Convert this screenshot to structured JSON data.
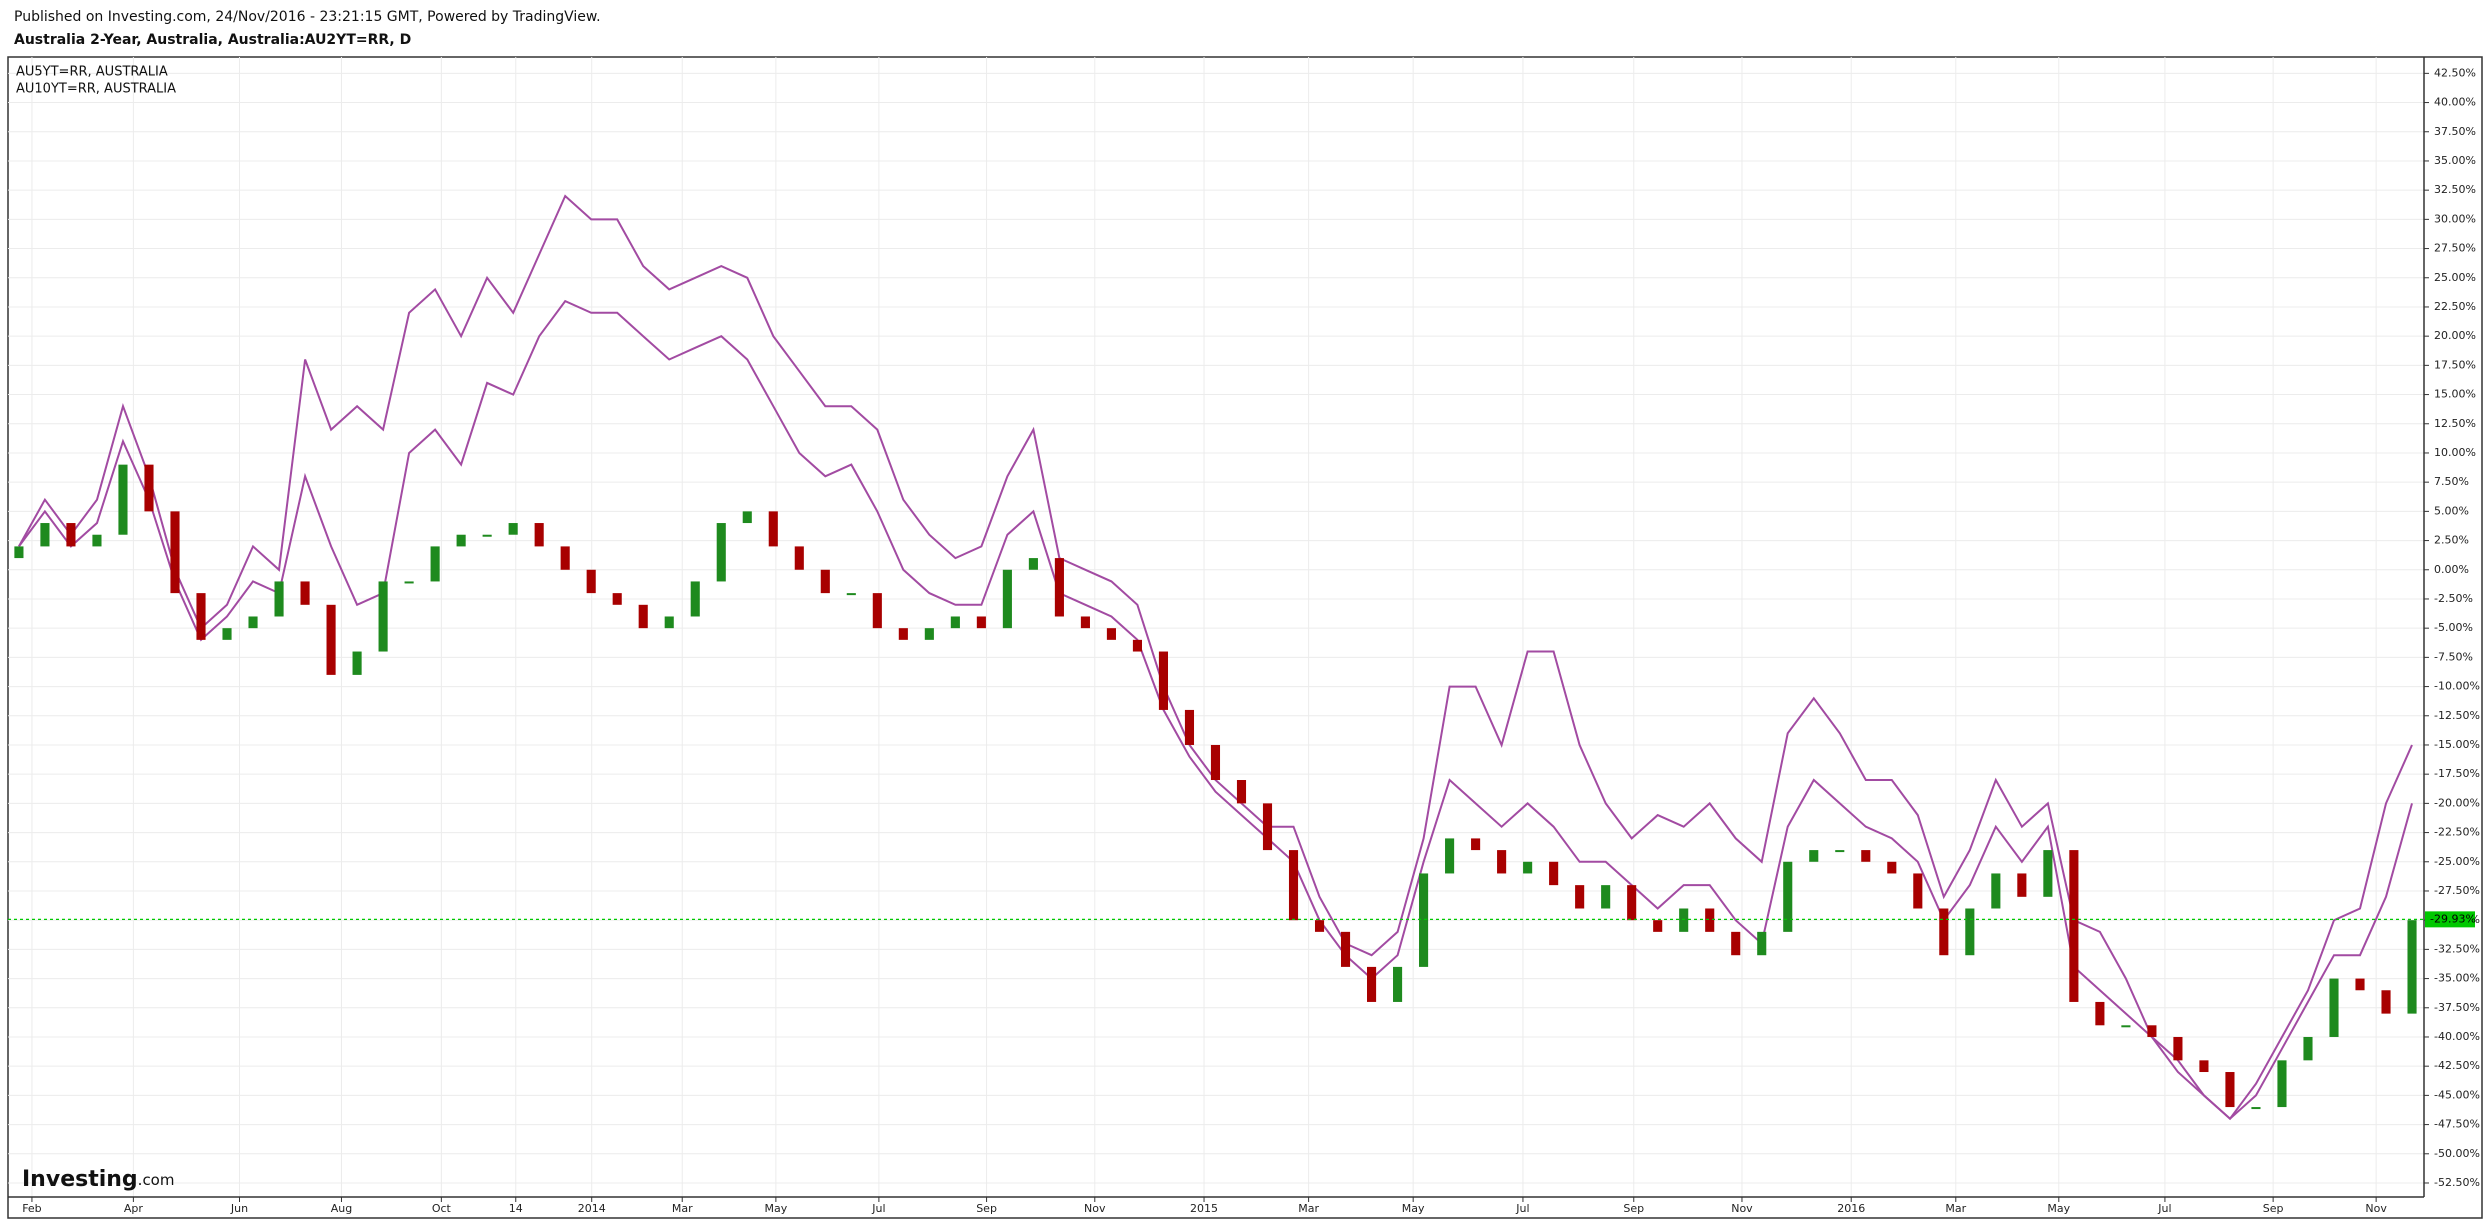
{
  "header": {
    "published": "Published on Investing.com, 24/Nov/2016 - 23:21:15 GMT, Powered by TradingView."
  },
  "branding": {
    "name": "Investing",
    "suffix": ".com"
  },
  "chart_data": {
    "type": "candlestick",
    "title": "Australia 2-Year, Australia, Australia:AU2YT=RR, D",
    "x": [
      0.75,
      1.25,
      1.75,
      2.25,
      2.75,
      3.25,
      3.75,
      4.25,
      4.75,
      5.25,
      5.75,
      6.25,
      6.75,
      7.25,
      7.75,
      8.25,
      8.75,
      9.25,
      9.75,
      10.25,
      10.75,
      11.25,
      11.75,
      12.25,
      12.75,
      13.25,
      13.75,
      14.25,
      14.75,
      15.25,
      15.75,
      16.25,
      16.75,
      17.25,
      17.75,
      18.25,
      18.75,
      19.25,
      19.75,
      20.25,
      20.75,
      21.25,
      21.75,
      22.25,
      22.75,
      23.25,
      23.75,
      24.25,
      24.75,
      25.25,
      25.75,
      26.25,
      26.75,
      27.25,
      27.75,
      28.25,
      28.75,
      29.25,
      29.75,
      30.25,
      30.75,
      31.25,
      31.75,
      32.25,
      32.75,
      33.25,
      33.75,
      34.25,
      34.75,
      35.25,
      35.75,
      36.25,
      36.75,
      37.25,
      37.75,
      38.25,
      38.75,
      39.25,
      39.75,
      40.25,
      40.75,
      41.25,
      41.75,
      42.25,
      42.75,
      43.25,
      43.75,
      44.25,
      44.75,
      45.25,
      45.75,
      46.25,
      46.75
    ],
    "xlim": [
      0.54,
      46.98
    ],
    "xticks": [
      {
        "value": 1,
        "label": "Feb"
      },
      {
        "value": 2.95,
        "label": "Apr"
      },
      {
        "value": 4.99,
        "label": "Jun"
      },
      {
        "value": 6.95,
        "label": "Aug"
      },
      {
        "value": 8.87,
        "label": "Oct"
      },
      {
        "value": 10.3,
        "label": "14"
      },
      {
        "value": 11.76,
        "label": "2014"
      },
      {
        "value": 13.5,
        "label": "Mar"
      },
      {
        "value": 15.3,
        "label": "May"
      },
      {
        "value": 17.28,
        "label": "Jul"
      },
      {
        "value": 19.35,
        "label": "Sep"
      },
      {
        "value": 21.43,
        "label": "Nov"
      },
      {
        "value": 23.53,
        "label": "2015"
      },
      {
        "value": 25.54,
        "label": "Mar"
      },
      {
        "value": 27.55,
        "label": "May"
      },
      {
        "value": 29.66,
        "label": "Jul"
      },
      {
        "value": 31.79,
        "label": "Sep"
      },
      {
        "value": 33.87,
        "label": "Nov"
      },
      {
        "value": 35.97,
        "label": "2016"
      },
      {
        "value": 37.98,
        "label": "Mar"
      },
      {
        "value": 39.96,
        "label": "May"
      },
      {
        "value": 42.0,
        "label": "Jul"
      },
      {
        "value": 44.08,
        "label": "Sep"
      },
      {
        "value": 46.06,
        "label": "Nov"
      }
    ],
    "ylim": [
      -53.7,
      43.9
    ],
    "yticks": [
      {
        "value": 42.5,
        "label": "42.50%"
      },
      {
        "value": 40,
        "label": "40.00%"
      },
      {
        "value": 37.5,
        "label": "37.50%"
      },
      {
        "value": 35,
        "label": "35.00%"
      },
      {
        "value": 32.5,
        "label": "32.50%"
      },
      {
        "value": 30,
        "label": "30.00%"
      },
      {
        "value": 27.5,
        "label": "27.50%"
      },
      {
        "value": 25,
        "label": "25.00%"
      },
      {
        "value": 22.5,
        "label": "22.50%"
      },
      {
        "value": 20,
        "label": "20.00%"
      },
      {
        "value": 17.5,
        "label": "17.50%"
      },
      {
        "value": 15,
        "label": "15.00%"
      },
      {
        "value": 12.5,
        "label": "12.50%"
      },
      {
        "value": 10,
        "label": "10.00%"
      },
      {
        "value": 7.5,
        "label": "7.50%"
      },
      {
        "value": 5,
        "label": "5.00%"
      },
      {
        "value": 2.5,
        "label": "2.50%"
      },
      {
        "value": 0,
        "label": "0.00%"
      },
      {
        "value": -2.5,
        "label": "-2.50%"
      },
      {
        "value": -5,
        "label": "-5.00%"
      },
      {
        "value": -7.5,
        "label": "-7.50%"
      },
      {
        "value": -10,
        "label": "-10.00%"
      },
      {
        "value": -12.5,
        "label": "-12.50%"
      },
      {
        "value": -15,
        "label": "-15.00%"
      },
      {
        "value": -17.5,
        "label": "-17.50%"
      },
      {
        "value": -20,
        "label": "-20.00%"
      },
      {
        "value": -22.5,
        "label": "-22.50%"
      },
      {
        "value": -25,
        "label": "-25.00%"
      },
      {
        "value": -27.5,
        "label": "-27.50%"
      },
      {
        "value": -30,
        "label": "-30.00%"
      },
      {
        "value": -32.5,
        "label": "-32.50%"
      },
      {
        "value": -35,
        "label": "-35.00%"
      },
      {
        "value": -37.5,
        "label": "-37.50%"
      },
      {
        "value": -40,
        "label": "-40.00%"
      },
      {
        "value": -42.5,
        "label": "-42.50%"
      },
      {
        "value": -45,
        "label": "-45.00%"
      },
      {
        "value": -47.5,
        "label": "-47.50%"
      },
      {
        "value": -50,
        "label": "-50.00%"
      },
      {
        "value": -52.5,
        "label": "-52.50%"
      }
    ],
    "grid": true,
    "candles": {
      "up_color": "#1e8a1e",
      "down_color": "#a80000",
      "open": [
        1,
        2,
        4,
        2,
        3,
        9,
        5,
        -2,
        -6,
        -5,
        -4,
        -1,
        -3,
        -9,
        -7,
        -1,
        -1,
        2,
        3,
        3,
        4,
        2,
        0,
        -2,
        -3,
        -5,
        -4,
        -1,
        4,
        5,
        2,
        0,
        -2,
        -2,
        -5,
        -6,
        -5,
        -4,
        -5,
        0,
        1,
        -4,
        -5,
        -6,
        -7,
        -12,
        -15,
        -18,
        -20,
        -24,
        -30,
        -31,
        -34,
        -37,
        -34,
        -26,
        -23,
        -24,
        -26,
        -25,
        -27,
        -29,
        -27,
        -30,
        -31,
        -29,
        -31,
        -33,
        -31,
        -25,
        -24,
        -24,
        -25,
        -26,
        -29,
        -33,
        -29,
        -26,
        -28,
        -24,
        -37,
        -39,
        -39,
        -40,
        -42,
        -43,
        -46,
        -46,
        -42,
        -40,
        -35,
        -36,
        -38
      ],
      "close": [
        2,
        4,
        2,
        3,
        9,
        5,
        -2,
        -6,
        -5,
        -4,
        -1,
        -3,
        -9,
        -7,
        -1,
        -1,
        2,
        3,
        3,
        4,
        2,
        0,
        -2,
        -3,
        -5,
        -4,
        -1,
        4,
        5,
        2,
        0,
        -2,
        -2,
        -5,
        -6,
        -5,
        -4,
        -5,
        0,
        1,
        -4,
        -5,
        -6,
        -7,
        -12,
        -15,
        -18,
        -20,
        -24,
        -30,
        -31,
        -34,
        -37,
        -34,
        -26,
        -23,
        -24,
        -26,
        -25,
        -27,
        -29,
        -27,
        -30,
        -31,
        -29,
        -31,
        -33,
        -31,
        -25,
        -24,
        -24,
        -25,
        -26,
        -29,
        -33,
        -29,
        -26,
        -28,
        -24,
        -37,
        -39,
        -39,
        -40,
        -42,
        -43,
        -46,
        -46,
        -42,
        -40,
        -35,
        -36,
        -38,
        -30
      ]
    },
    "series": [
      {
        "name": "AU5YT=RR, AUSTRALIA",
        "color": "#a24ba2",
        "values": [
          2,
          5,
          2,
          4,
          11,
          6,
          -1,
          -6,
          -4,
          -1,
          -2,
          8,
          2,
          -3,
          -2,
          10,
          12,
          9,
          16,
          15,
          20,
          23,
          22,
          22,
          20,
          18,
          19,
          20,
          18,
          14,
          10,
          8,
          9,
          5,
          0,
          -2,
          -3,
          -3,
          3,
          5,
          -2,
          -3,
          -4,
          -6,
          -12,
          -16,
          -19,
          -21,
          -23,
          -25,
          -30,
          -33,
          -35,
          -33,
          -25,
          -18,
          -20,
          -22,
          -20,
          -22,
          -25,
          -25,
          -27,
          -29,
          -27,
          -27,
          -30,
          -32,
          -22,
          -18,
          -20,
          -22,
          -23,
          -25,
          -30,
          -27,
          -22,
          -25,
          -22,
          -34,
          -36,
          -38,
          -40,
          -43,
          -45,
          -47,
          -45,
          -41,
          -37,
          -33,
          -33,
          -28,
          -20
        ]
      },
      {
        "name": "AU10YT=RR, AUSTRALIA",
        "color": "#a24ba2",
        "values": [
          2,
          6,
          3,
          6,
          14,
          8,
          0,
          -5,
          -3,
          2,
          0,
          18,
          12,
          14,
          12,
          22,
          24,
          20,
          25,
          22,
          27,
          32,
          30,
          30,
          26,
          24,
          25,
          26,
          25,
          20,
          17,
          14,
          14,
          12,
          6,
          3,
          1,
          2,
          8,
          12,
          1,
          0,
          -1,
          -3,
          -10,
          -15,
          -18,
          -20,
          -22,
          -22,
          -28,
          -32,
          -33,
          -31,
          -23,
          -10,
          -10,
          -15,
          -7,
          -7,
          -15,
          -20,
          -23,
          -21,
          -22,
          -20,
          -23,
          -25,
          -14,
          -11,
          -14,
          -18,
          -18,
          -21,
          -28,
          -24,
          -18,
          -22,
          -20,
          -30,
          -31,
          -35,
          -40,
          -42,
          -45,
          -47,
          -44,
          -40,
          -36,
          -30,
          -29,
          -20,
          -15
        ]
      }
    ],
    "last_value": {
      "value": -29.93,
      "label": "-29.93%",
      "color": "#00c800"
    }
  }
}
